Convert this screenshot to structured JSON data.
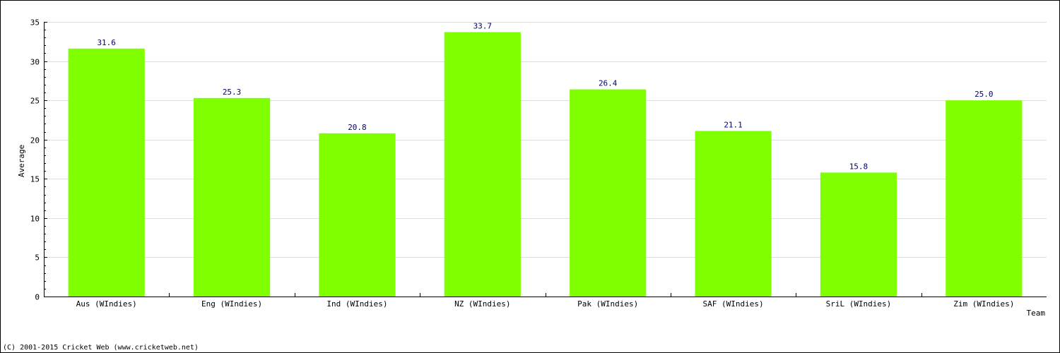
{
  "chart_data": {
    "type": "bar",
    "categories": [
      "Aus (WIndies)",
      "Eng (WIndies)",
      "Ind (WIndies)",
      "NZ (WIndies)",
      "Pak (WIndies)",
      "SAF (WIndies)",
      "SriL (WIndies)",
      "Zim (WIndies)"
    ],
    "values": [
      31.6,
      25.3,
      20.8,
      33.7,
      26.4,
      21.1,
      15.8,
      25.0
    ],
    "value_labels": [
      "31.6",
      "25.3",
      "20.8",
      "33.7",
      "26.4",
      "21.1",
      "15.8",
      "25.0"
    ],
    "xlabel": "Team",
    "ylabel": "Average",
    "ylim": [
      0,
      35
    ],
    "yticks": [
      0,
      5,
      10,
      15,
      20,
      25,
      30,
      35
    ],
    "grid": true,
    "bar_color": "#80ff00"
  },
  "footer": {
    "copyright": "(C) 2001-2015 Cricket Web (www.cricketweb.net)"
  }
}
